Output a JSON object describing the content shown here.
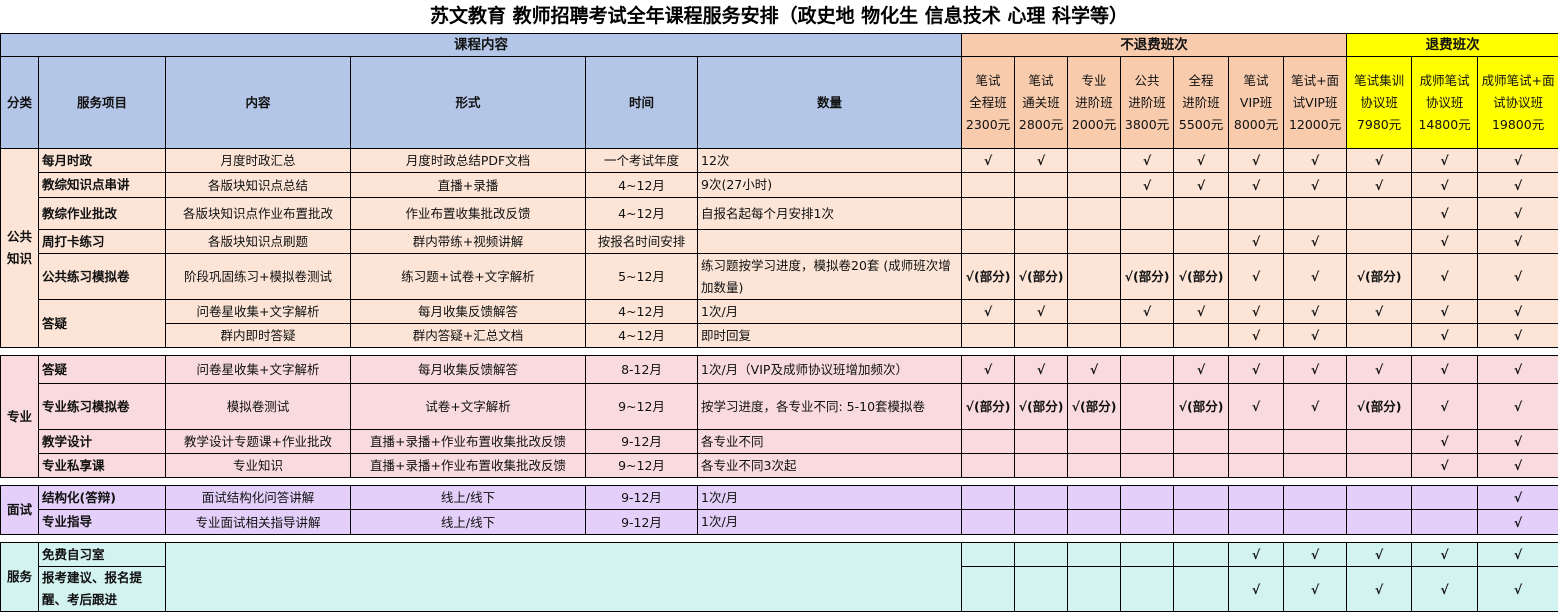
{
  "title": "苏文教育 教师招聘考试全年课程服务安排（政史地 物化生 信息技术 心理 科学等）",
  "header": {
    "course_content": "课程内容",
    "non_refund": "不退费班次",
    "refund": "退费班次",
    "columns": [
      "分类",
      "服务项目",
      "内容",
      "形式",
      "时间",
      "数量"
    ],
    "classes": [
      {
        "lines": [
          "笔试",
          "全程班",
          "2300元"
        ],
        "refund": false
      },
      {
        "lines": [
          "笔试",
          "通关班",
          "2800元"
        ],
        "refund": false
      },
      {
        "lines": [
          "专业",
          "进阶班",
          "2000元"
        ],
        "refund": false
      },
      {
        "lines": [
          "公共",
          "进阶班",
          "3800元"
        ],
        "refund": false
      },
      {
        "lines": [
          "全程",
          "进阶班",
          "5500元"
        ],
        "refund": false
      },
      {
        "lines": [
          "笔试",
          "VIP班",
          "8000元"
        ],
        "refund": false
      },
      {
        "lines": [
          "笔试+面",
          "试VIP班",
          "12000元"
        ],
        "refund": false
      },
      {
        "lines": [
          "笔试集训",
          "协议班",
          "7980元"
        ],
        "refund": true
      },
      {
        "lines": [
          "成师笔试",
          "协议班",
          "14800元"
        ],
        "refund": true
      },
      {
        "lines": [
          "成师笔试+面",
          "试协议班",
          "19800元"
        ],
        "refund": true
      }
    ]
  },
  "colors": {
    "header_blue": "#b4c6e7",
    "non_refund": "#f8cbad",
    "refund": "#ffff00"
  },
  "sections": [
    {
      "category": "公共知识",
      "color": "#fce4d6",
      "rows": [
        {
          "item": "每月时政",
          "content": "月度时政汇总",
          "form": "月度时政总结PDF文档",
          "time": "一个考试年度",
          "qty": "12次",
          "checks": [
            "√",
            "√",
            "",
            "√",
            "√",
            "√",
            "√",
            "√",
            "√",
            "√"
          ]
        },
        {
          "item": "教综知识点串讲",
          "content": "各版块知识点总结",
          "form": "直播+录播",
          "time": "4~12月",
          "qty": "9次(27小时)",
          "checks": [
            "",
            "",
            "",
            "√",
            "√",
            "√",
            "√",
            "√",
            "√",
            "√"
          ]
        },
        {
          "item": "教综作业批改",
          "content": "各版块知识点作业布置批改",
          "form": "作业布置收集批改反馈",
          "time": "4~12月",
          "qty": "自报名起每个月安排1次",
          "checks": [
            "",
            "",
            "",
            "",
            "",
            "",
            "",
            "",
            "√",
            "√"
          ]
        },
        {
          "item": "周打卡练习",
          "content": "各版块知识点刷题",
          "form": "群内带练+视频讲解",
          "time": "按报名时间安排",
          "qty": "",
          "checks": [
            "",
            "",
            "",
            "",
            "",
            "√",
            "√",
            "",
            "√",
            "√"
          ]
        },
        {
          "item": "公共练习模拟卷",
          "content": "阶段巩固练习+模拟卷测试",
          "form": "练习题+试卷+文字解析",
          "time": "5~12月",
          "qty": "练习题按学习进度，模拟卷20套 (成师班次增加数量)",
          "checks": [
            "√(部分)",
            "√(部分)",
            "",
            "√(部分)",
            "√(部分)",
            "√",
            "√",
            "√(部分)",
            "√",
            "√"
          ]
        },
        {
          "item": "答疑",
          "item_rows": 2,
          "content": "问卷星收集+文字解析",
          "form": "每月收集反馈解答",
          "time": "4~12月",
          "qty": "1次/月",
          "checks": [
            "√",
            "√",
            "",
            "√",
            "√",
            "√",
            "√",
            "√",
            "√",
            "√"
          ]
        },
        {
          "content": "群内即时答疑",
          "form": "群内答疑+汇总文档",
          "time": "4~12月",
          "qty": "即时回复",
          "checks": [
            "",
            "",
            "",
            "",
            "",
            "√",
            "√",
            "",
            "√",
            "√"
          ]
        }
      ]
    },
    {
      "category": "专业",
      "color": "#f9dade",
      "rows": [
        {
          "item": "答疑",
          "content": "问卷星收集+文字解析",
          "form": "每月收集反馈解答",
          "time": "8-12月",
          "qty": "1次/月（VIP及成师协议班增加频次）",
          "checks": [
            "√",
            "√",
            "√",
            "",
            "√",
            "√",
            "√",
            "√",
            "√",
            "√"
          ]
        },
        {
          "item": "专业练习模拟卷",
          "content": "模拟卷测试",
          "form": "试卷+文字解析",
          "time": "9~12月",
          "qty": "按学习进度，各专业不同: 5-10套模拟卷",
          "checks": [
            "√(部分)",
            "√(部分)",
            "√(部分)",
            "",
            "√(部分)",
            "√",
            "√",
            "√(部分)",
            "√",
            "√"
          ]
        },
        {
          "item": "教学设计",
          "content": "教学设计专题课+作业批改",
          "form": "直播+录播+作业布置收集批改反馈",
          "time": "9-12月",
          "qty": "各专业不同",
          "checks": [
            "",
            "",
            "",
            "",
            "",
            "",
            "",
            "",
            "√",
            "√"
          ]
        },
        {
          "item": "专业私享课",
          "content": "专业知识",
          "form": "直播+录播+作业布置收集批改反馈",
          "time": "9~12月",
          "qty": "各专业不同3次起",
          "checks": [
            "",
            "",
            "",
            "",
            "",
            "",
            "",
            "",
            "√",
            "√"
          ]
        }
      ]
    },
    {
      "category": "面试",
      "color": "#e3cff9",
      "rows": [
        {
          "item": "结构化(答辩)",
          "content": "面试结构化问答讲解",
          "form": "线上/线下",
          "time": "9-12月",
          "qty": "1次/月",
          "checks": [
            "",
            "",
            "",
            "",
            "",
            "",
            "",
            "",
            "",
            "√"
          ]
        },
        {
          "item": "专业指导",
          "content": "专业面试相关指导讲解",
          "form": "线上/线下",
          "time": "9-12月",
          "qty": "1次/月",
          "checks": [
            "",
            "",
            "",
            "",
            "",
            "",
            "",
            "",
            "",
            "√"
          ]
        }
      ]
    },
    {
      "category": "服务",
      "color": "#d3f3f1",
      "merged": true,
      "rows": [
        {
          "item": "免费自习室",
          "checks": [
            "",
            "",
            "",
            "",
            "",
            "√",
            "√",
            "√",
            "√",
            "√"
          ]
        },
        {
          "item": "报考建议、报名提醒、考后跟进",
          "checks": [
            "",
            "",
            "",
            "",
            "",
            "√",
            "√",
            "√",
            "√",
            "√"
          ]
        }
      ]
    }
  ]
}
